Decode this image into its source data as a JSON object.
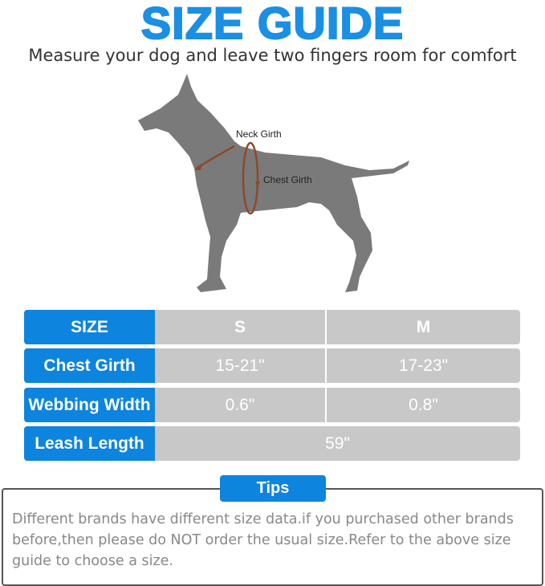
{
  "title": "SIZE GUIDE",
  "subtitle": "Measure your dog and leave two fingers room for comfort",
  "diagram": {
    "neck_label": "Neck Girth",
    "chest_label": "Chest Girth",
    "measure_color": "#8b4a2b",
    "dog_color": "#7a7a7a"
  },
  "table": {
    "header": {
      "label": "SIZE",
      "s": "S",
      "m": "M"
    },
    "rows": [
      {
        "label": "Chest Girth",
        "s": "15-21\"",
        "m": "17-23\""
      },
      {
        "label": "Webbing Width",
        "s": "0.6\"",
        "m": "0.8\""
      }
    ],
    "leash": {
      "label": "Leash Length",
      "value": "59\""
    }
  },
  "tips": {
    "label": "Tips",
    "text": "Different brands have different size data.if you purchased other brands before,then please do NOT order the usual size.Refer to the above size guide to choose a size."
  },
  "colors": {
    "accent": "#1a8fe3",
    "label_bg": "#0d84de",
    "cell_bg": "#c8c8c8"
  }
}
